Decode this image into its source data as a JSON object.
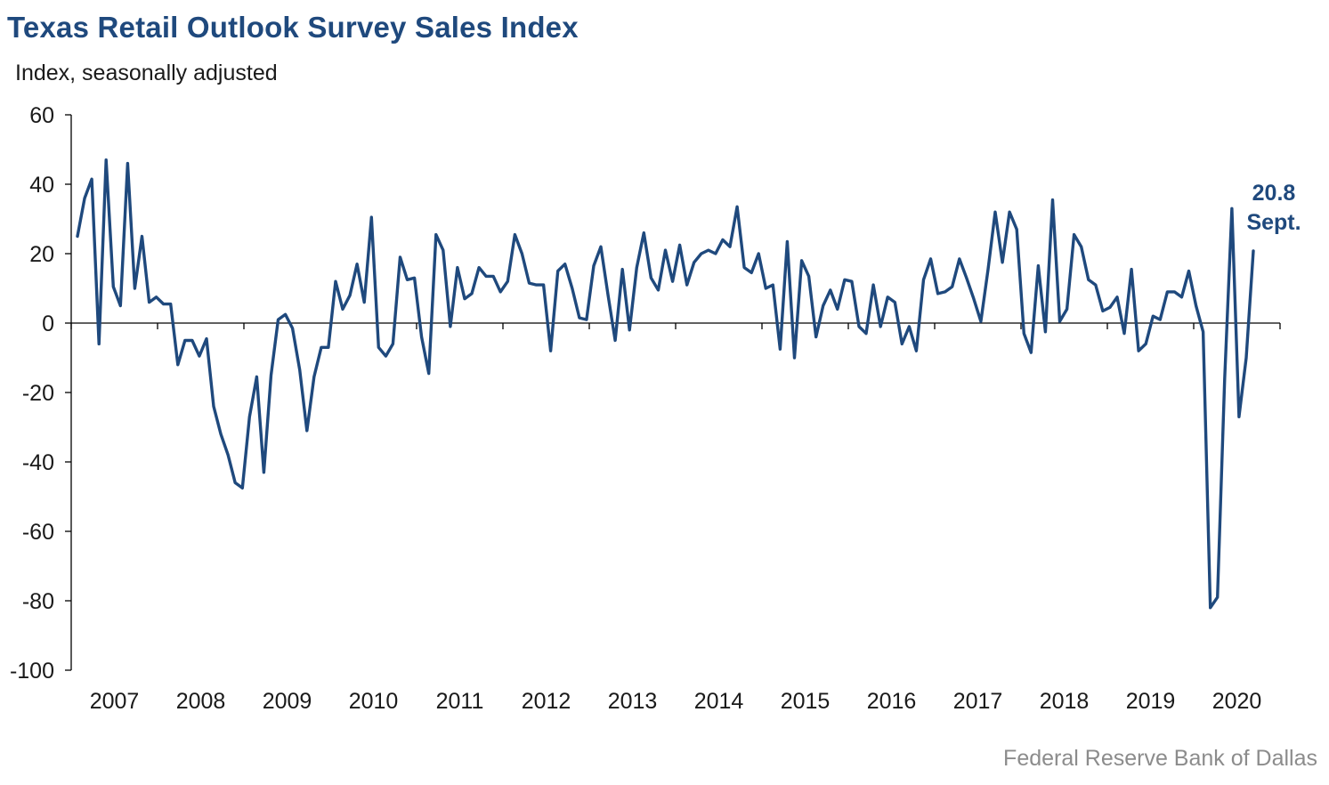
{
  "title": "Texas Retail Outlook Survey Sales Index",
  "subtitle": "Index, seasonally adjusted",
  "source": "Federal Reserve Bank of Dallas",
  "colors": {
    "line": "#1f497d",
    "axis": "#000000",
    "title": "#1f497d",
    "source": "#8c8c8c"
  },
  "chart_data": {
    "type": "line",
    "title": "Texas Retail Outlook Survey Sales Index",
    "ylabel": "Index, seasonally adjusted",
    "xlabel": "",
    "ylim": [
      -100,
      60
    ],
    "yticks": [
      60,
      40,
      20,
      0,
      -20,
      -40,
      -60,
      -80,
      -100
    ],
    "year_labels": [
      "2007",
      "2008",
      "2009",
      "2010",
      "2011",
      "2012",
      "2013",
      "2014",
      "2015",
      "2016",
      "2017",
      "2018",
      "2019",
      "2020"
    ],
    "x_start": "2007-01",
    "x_end": "2020-09",
    "grid": false,
    "annotation": {
      "value_text": "20.8",
      "month_text": "Sept."
    },
    "series": [
      {
        "values": [
          25,
          36,
          41.5,
          -6,
          47,
          10.5,
          5,
          46,
          10,
          25,
          6,
          7.5,
          5.5,
          5.5,
          -12,
          -5,
          -5,
          -9.5,
          -4.5,
          -24,
          -32,
          -38,
          -46,
          -47.5,
          -27,
          -15.5,
          -43,
          -15,
          1,
          2.5,
          -1.5,
          -13.5,
          -31,
          -15.5,
          -7,
          -7,
          12,
          4,
          8,
          17,
          6,
          30.5,
          -7,
          -9.5,
          -6,
          19,
          12.5,
          13,
          -4,
          -14.5,
          25.5,
          21,
          -1,
          16,
          7,
          8.5,
          16,
          13.5,
          13.5,
          9,
          12,
          25.5,
          20,
          11.5,
          11,
          11,
          -8,
          15,
          17,
          10,
          1.5,
          1,
          16.5,
          22,
          8,
          -5,
          15.5,
          -2,
          16,
          26,
          13,
          9.5,
          21,
          12,
          22.5,
          11,
          17.5,
          20,
          21,
          20,
          24,
          22,
          33.5,
          16,
          14.5,
          20,
          10,
          11,
          -7.5,
          23.5,
          -10,
          18,
          13.5,
          -4,
          5,
          9.5,
          4,
          12.5,
          12,
          -1,
          -3,
          11,
          -1,
          7.5,
          6,
          -6,
          -1,
          -8,
          12.5,
          18.5,
          8.5,
          9,
          10.5,
          18.5,
          13,
          7,
          0.5,
          15.5,
          32,
          17.5,
          32,
          27,
          -3,
          -8.5,
          16.5,
          -2.5,
          35.5,
          0.5,
          4,
          25.5,
          22,
          12.5,
          11,
          3.5,
          4.5,
          7.5,
          -3,
          15.5,
          -8,
          -6,
          2,
          1,
          9,
          9,
          7.5,
          15,
          5,
          -2.5,
          -82,
          -79,
          -16,
          33,
          -27,
          -10,
          20.8
        ]
      }
    ]
  }
}
